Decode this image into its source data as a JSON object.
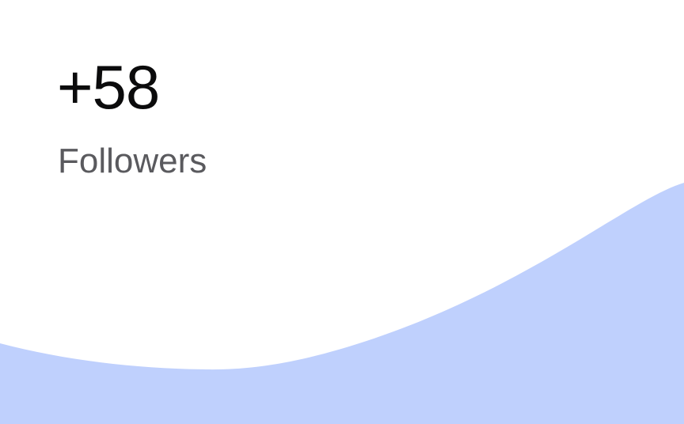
{
  "stat_card": {
    "value": "+58",
    "label": "Followers",
    "accent_color": "#BFD0FD"
  }
}
